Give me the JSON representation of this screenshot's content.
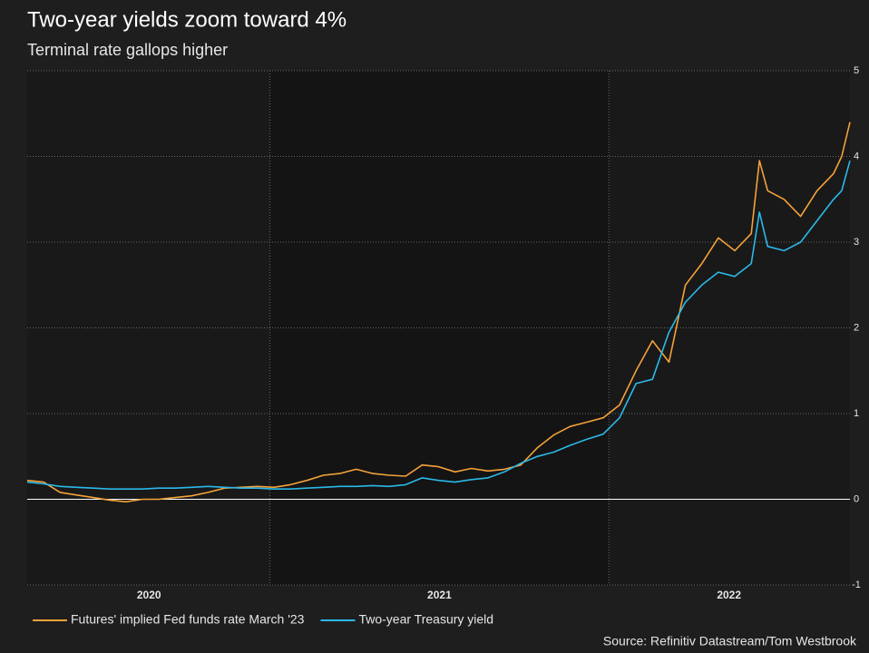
{
  "chart_data": {
    "type": "line",
    "title": "Two-year yields zoom toward 4%",
    "subtitle": "Terminal rate gallops higher",
    "source": "Source: Refinitiv Datastream/Tom Westbrook",
    "x": [
      0,
      2,
      4,
      6,
      8,
      10,
      12,
      14,
      16,
      18,
      20,
      22,
      24,
      26,
      28,
      30,
      32,
      34,
      36,
      38,
      40,
      42,
      44,
      46,
      48,
      50,
      52,
      54,
      56,
      58,
      60,
      62,
      64,
      66,
      68,
      70,
      72,
      74,
      76,
      78,
      80,
      82,
      84,
      86,
      88,
      89,
      90,
      92,
      94,
      96,
      98,
      99,
      100
    ],
    "xlim": [
      0,
      100
    ],
    "xticks": [
      {
        "value": 14.8,
        "label": "2020"
      },
      {
        "value": 50.1,
        "label": "2021"
      },
      {
        "value": 85.3,
        "label": "2022"
      }
    ],
    "xbands": [
      29.5,
      70.7
    ],
    "ylim": [
      -1,
      5
    ],
    "yticks": [
      -1,
      0,
      1,
      2,
      3,
      4,
      5
    ],
    "grid": true,
    "legend": "bottom",
    "series": [
      {
        "name": "Futures' implied Fed funds rate March '23",
        "color": "#f4a23a",
        "values": [
          0.22,
          0.2,
          0.08,
          0.05,
          0.02,
          -0.01,
          -0.03,
          0.0,
          0.0,
          0.02,
          0.04,
          0.08,
          0.13,
          0.14,
          0.15,
          0.14,
          0.17,
          0.22,
          0.28,
          0.3,
          0.35,
          0.3,
          0.28,
          0.27,
          0.4,
          0.38,
          0.32,
          0.36,
          0.33,
          0.35,
          0.4,
          0.6,
          0.75,
          0.85,
          0.9,
          0.95,
          1.1,
          1.5,
          1.85,
          1.6,
          2.5,
          2.75,
          3.05,
          2.9,
          3.1,
          3.95,
          3.6,
          3.5,
          3.3,
          3.6,
          3.8,
          4.0,
          4.4
        ]
      },
      {
        "name": "Two-year Treasury yield",
        "color": "#2bb9e8",
        "values": [
          0.2,
          0.18,
          0.15,
          0.14,
          0.13,
          0.12,
          0.12,
          0.12,
          0.13,
          0.13,
          0.14,
          0.15,
          0.14,
          0.13,
          0.13,
          0.12,
          0.12,
          0.13,
          0.14,
          0.15,
          0.15,
          0.16,
          0.15,
          0.17,
          0.25,
          0.22,
          0.2,
          0.23,
          0.25,
          0.32,
          0.42,
          0.5,
          0.55,
          0.63,
          0.7,
          0.76,
          0.95,
          1.35,
          1.4,
          1.95,
          2.3,
          2.5,
          2.65,
          2.6,
          2.75,
          3.35,
          2.95,
          2.9,
          3.0,
          3.25,
          3.5,
          3.6,
          3.95
        ]
      }
    ]
  }
}
